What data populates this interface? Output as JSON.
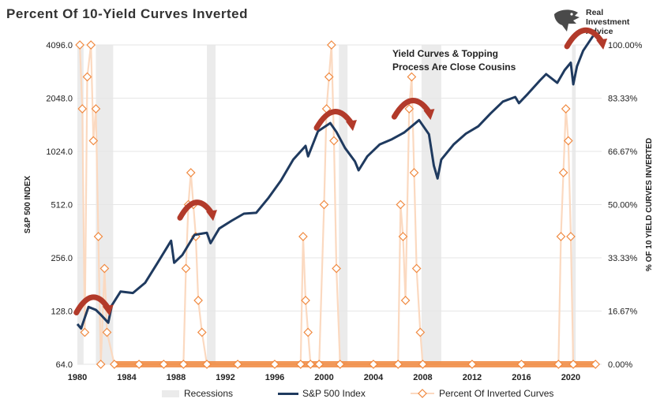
{
  "title": "Percent Of 10-Yield Curves Inverted",
  "logo": {
    "line1": "Real",
    "line2": "Investment",
    "line3": "Advice"
  },
  "annotation": {
    "line1": "Yield Curves & Topping",
    "line2": "Process Are Close Cousins"
  },
  "colors": {
    "sp500": "#1f3a5f",
    "inverted": "#f0883e",
    "inverted_fill": "#fbd9c0",
    "recession": "#ebebeb",
    "arrow": "#b23a2a",
    "grid": "#e6e6e6"
  },
  "legend": [
    {
      "label": "Recessions",
      "kind": "box"
    },
    {
      "label": "S&P 500 Index",
      "kind": "line"
    },
    {
      "label": "Percent Of Inverted Curves",
      "kind": "marker"
    }
  ],
  "chart_data": {
    "type": "line",
    "title": "Percent Of 10-Yield Curves Inverted",
    "xlim": [
      1980,
      2022.5
    ],
    "x_ticks": [
      "1980",
      "1984",
      "1988",
      "1992",
      "1996",
      "2000",
      "2004",
      "2008",
      "2012",
      "2016",
      "2020"
    ],
    "left_axis": {
      "label": "S&P 500 INDEX",
      "scale": "log2",
      "lim": [
        64,
        4096
      ],
      "ticks": [
        "64.0",
        "128.0",
        "256.0",
        "512.0",
        "1024.0",
        "2048.0",
        "4096.0"
      ]
    },
    "right_axis": {
      "label": "% OF 10 YIELD CURVES INVERTED",
      "lim": [
        0,
        100
      ],
      "ticks": [
        "0.00%",
        "16.67%",
        "33.33%",
        "50.00%",
        "66.67%",
        "83.33%",
        "100.00%"
      ]
    },
    "grid": true,
    "legend_position": "bottom",
    "recessions": [
      [
        1980.0,
        1980.5
      ],
      [
        1981.5,
        1982.9
      ],
      [
        1990.5,
        1991.2
      ],
      [
        2001.2,
        2001.9
      ],
      [
        2007.9,
        2009.5
      ],
      [
        2020.1,
        2020.4
      ]
    ],
    "series": [
      {
        "name": "S&P 500 Index",
        "axis": "left",
        "points": [
          [
            1980.0,
            108
          ],
          [
            1980.3,
            102
          ],
          [
            1980.9,
            135
          ],
          [
            1981.5,
            130
          ],
          [
            1981.9,
            122
          ],
          [
            1982.5,
            110
          ],
          [
            1982.8,
            138
          ],
          [
            1983.5,
            165
          ],
          [
            1984.5,
            162
          ],
          [
            1985.5,
            185
          ],
          [
            1986.5,
            240
          ],
          [
            1987.6,
            320
          ],
          [
            1987.85,
            240
          ],
          [
            1988.5,
            265
          ],
          [
            1989.5,
            345
          ],
          [
            1990.5,
            355
          ],
          [
            1990.8,
            310
          ],
          [
            1991.5,
            375
          ],
          [
            1992.5,
            415
          ],
          [
            1993.5,
            455
          ],
          [
            1994.5,
            460
          ],
          [
            1995.5,
            560
          ],
          [
            1996.5,
            700
          ],
          [
            1997.5,
            920
          ],
          [
            1998.5,
            1100
          ],
          [
            1998.7,
            960
          ],
          [
            1999.5,
            1330
          ],
          [
            2000.5,
            1480
          ],
          [
            2001.0,
            1320
          ],
          [
            2001.7,
            1070
          ],
          [
            2002.5,
            900
          ],
          [
            2002.8,
            800
          ],
          [
            2003.5,
            960
          ],
          [
            2004.5,
            1120
          ],
          [
            2005.5,
            1200
          ],
          [
            2006.5,
            1310
          ],
          [
            2007.7,
            1540
          ],
          [
            2008.5,
            1280
          ],
          [
            2008.9,
            850
          ],
          [
            2009.2,
            720
          ],
          [
            2009.5,
            920
          ],
          [
            2010.5,
            1120
          ],
          [
            2011.5,
            1290
          ],
          [
            2012.5,
            1420
          ],
          [
            2013.5,
            1680
          ],
          [
            2014.5,
            1960
          ],
          [
            2015.5,
            2080
          ],
          [
            2015.8,
            1920
          ],
          [
            2016.5,
            2160
          ],
          [
            2017.5,
            2580
          ],
          [
            2018.0,
            2800
          ],
          [
            2018.9,
            2500
          ],
          [
            2019.5,
            2950
          ],
          [
            2020.0,
            3250
          ],
          [
            2020.2,
            2450
          ],
          [
            2020.5,
            3100
          ],
          [
            2021.0,
            3800
          ],
          [
            2021.8,
            4600
          ]
        ]
      },
      {
        "name": "Percent Of Inverted Curves",
        "axis": "right",
        "points": [
          [
            1980.2,
            100
          ],
          [
            1980.4,
            80
          ],
          [
            1980.6,
            10
          ],
          [
            1980.8,
            90
          ],
          [
            1981.1,
            100
          ],
          [
            1981.3,
            70
          ],
          [
            1981.5,
            80
          ],
          [
            1981.7,
            40
          ],
          [
            1981.9,
            0
          ],
          [
            1982.2,
            30
          ],
          [
            1982.4,
            10
          ],
          [
            1983.0,
            0
          ],
          [
            1985.0,
            0
          ],
          [
            1987.0,
            0
          ],
          [
            1988.6,
            0
          ],
          [
            1988.8,
            30
          ],
          [
            1989.0,
            50
          ],
          [
            1989.2,
            60
          ],
          [
            1989.4,
            50
          ],
          [
            1989.6,
            40
          ],
          [
            1989.8,
            20
          ],
          [
            1990.1,
            10
          ],
          [
            1990.5,
            0
          ],
          [
            1993.0,
            0
          ],
          [
            1996.0,
            0
          ],
          [
            1998.1,
            0
          ],
          [
            1998.3,
            40
          ],
          [
            1998.5,
            20
          ],
          [
            1998.7,
            10
          ],
          [
            1998.9,
            0
          ],
          [
            1999.6,
            0
          ],
          [
            2000.0,
            50
          ],
          [
            2000.2,
            80
          ],
          [
            2000.4,
            90
          ],
          [
            2000.6,
            100
          ],
          [
            2000.8,
            70
          ],
          [
            2001.0,
            30
          ],
          [
            2001.3,
            0
          ],
          [
            2004.0,
            0
          ],
          [
            2006.0,
            0
          ],
          [
            2006.2,
            50
          ],
          [
            2006.4,
            40
          ],
          [
            2006.6,
            20
          ],
          [
            2006.9,
            80
          ],
          [
            2007.1,
            90
          ],
          [
            2007.3,
            60
          ],
          [
            2007.5,
            30
          ],
          [
            2007.8,
            10
          ],
          [
            2008.0,
            0
          ],
          [
            2012.0,
            0
          ],
          [
            2016.0,
            0
          ],
          [
            2019.0,
            0
          ],
          [
            2019.2,
            40
          ],
          [
            2019.4,
            60
          ],
          [
            2019.6,
            80
          ],
          [
            2019.8,
            70
          ],
          [
            2020.0,
            40
          ],
          [
            2020.2,
            0
          ],
          [
            2022.0,
            0
          ]
        ]
      }
    ]
  }
}
